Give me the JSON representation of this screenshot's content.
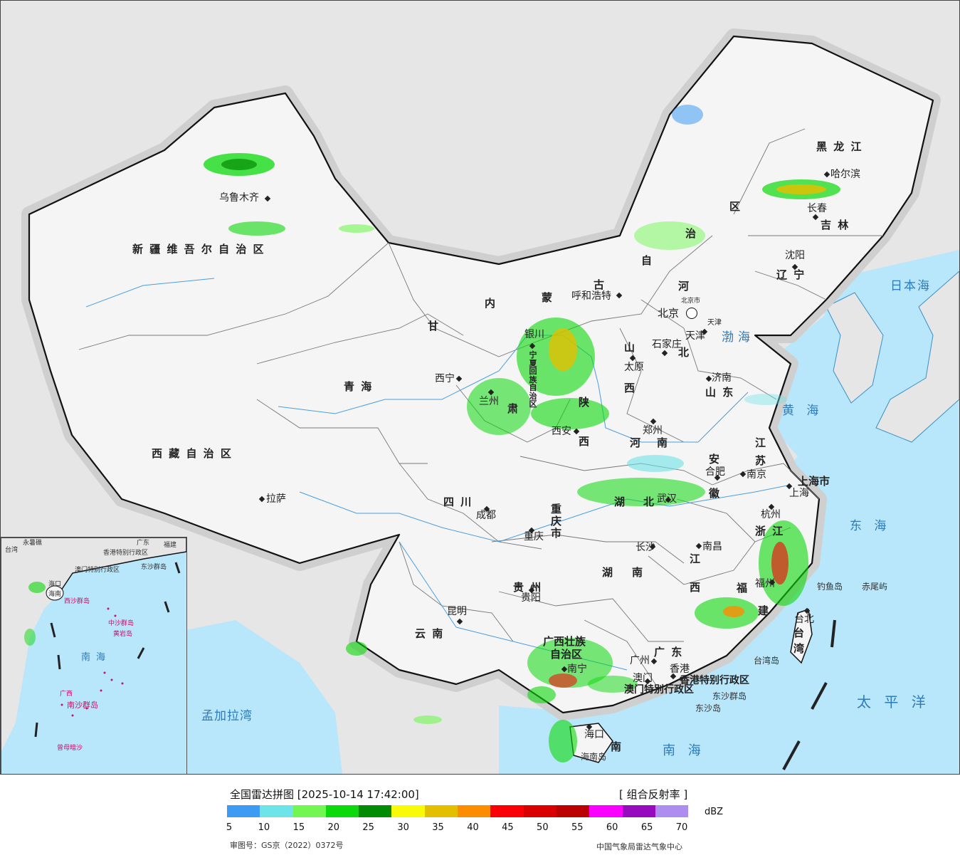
{
  "map": {
    "land_outside": "#e6e6e6",
    "sea_color": "#b8e6fa",
    "china_land": "#f5f5f5",
    "provinces": {
      "xinjiang": "新 疆 维 吾 尔 自 治 区",
      "xizang": "西 藏 自 治 区",
      "qinghai": "青      海",
      "gansu": "甘",
      "sichuan": "四      川",
      "yunnan": "云      南",
      "guizhou": "贵   州",
      "neimenggu": [
        "内",
        "蒙",
        "古",
        "自",
        "治",
        "区"
      ],
      "ningxia": [
        "宁",
        "夏",
        "回",
        "族",
        "自",
        "治",
        "区"
      ],
      "shaanxi": [
        "陕",
        "西"
      ],
      "shanxi": [
        "山",
        "西"
      ],
      "hebei": [
        "河",
        "北"
      ],
      "henan": [
        "河",
        "南"
      ],
      "shandong": "山 东",
      "jiangsu": [
        "江",
        "苏"
      ],
      "anhui": [
        "安",
        "徽"
      ],
      "hubei": [
        "湖",
        "北"
      ],
      "hunan": [
        "湖",
        "南"
      ],
      "jiangxi": [
        "江",
        "西"
      ],
      "zhejiang": "浙 江",
      "fujian": [
        "福",
        "建"
      ],
      "guangdong": "广 东",
      "guangxi": "广西壮族",
      "guangxi2": "自治区",
      "hainan": "南",
      "chongqing": [
        "重",
        "庆",
        "市"
      ],
      "shanghai": "上海市",
      "heilongjiang": "黑   龙   江",
      "jilin": "吉   林",
      "liaoning": "辽 宁",
      "taiwan": [
        "台",
        "湾"
      ],
      "hongkong": "香港特别行政区",
      "macau": "澳门特别行政区"
    },
    "cities": {
      "urumqi": "乌鲁木齐",
      "lhasa": "拉萨",
      "xining": "西宁",
      "lanzhou": "兰州",
      "yinchuan": "银川",
      "hohhot": "呼和浩特",
      "beijing": "北京",
      "beijing_small": "北京市",
      "tianjin": "天津",
      "tianjin_small": "天津",
      "shijiazhuang": "石家庄",
      "taiyuan": "太原",
      "jinan": "济南",
      "xian": "西安",
      "zhengzhou": "郑州",
      "hefei": "合肥",
      "nanjing": "南京",
      "shanghai": "上海",
      "hangzhou": "杭州",
      "wuhan": "武汉",
      "chengdu": "成都",
      "chongqing": "重庆",
      "changsha": "长沙",
      "nanchang": "南昌",
      "fuzhou": "福州",
      "taipei": "台北",
      "guiyang": "贵阳",
      "kunming": "昆明",
      "nanning": "南宁",
      "guangzhou": "广州",
      "hongkong": "香港",
      "macau": "澳门",
      "haikou": "海口",
      "harbin": "哈尔滨",
      "changchun": "长春",
      "shenyang": "沈阳"
    },
    "seas": {
      "japan_sea": "日本海",
      "bohai": "渤海",
      "yellow_sea": "黄 海",
      "east_sea": "东 海",
      "pacific": "太 平 洋",
      "south_sea": "南 海",
      "bengal": "孟加拉湾"
    },
    "islands": {
      "diaoyu": "钓鱼岛",
      "chiwei": "赤尾屿",
      "taiwan_island": "台湾岛",
      "dongsha_islands": "东沙群岛",
      "dongsha_island": "东沙岛",
      "hainan_island": "海南岛"
    }
  },
  "inset": {
    "labels": [
      "香港特别行政区",
      "澳门特别行政区",
      "东沙群岛",
      "海南",
      "西沙群岛",
      "中沙群岛",
      "黄岩岛",
      "南海",
      "南沙群岛",
      "曾母暗沙",
      "永暑礁",
      "广东",
      "福建",
      "台湾",
      "广西",
      "海口"
    ]
  },
  "legend": {
    "title": "全国雷达拼图 [2025-10-14 17:42:00]",
    "product": "[ 组合反射率 ]",
    "unit": "dBZ",
    "ticks": [
      "5",
      "10",
      "15",
      "20",
      "25",
      "30",
      "35",
      "40",
      "45",
      "50",
      "55",
      "60",
      "65",
      "70"
    ],
    "colors": [
      "#3d9bf2",
      "#6ee3e8",
      "#72f752",
      "#0bd90b",
      "#038c03",
      "#f8fa08",
      "#e3bf00",
      "#fc8c00",
      "#fa0006",
      "#d80000",
      "#bb0000",
      "#fa00ff",
      "#950bbd",
      "#ad8ef0"
    ],
    "approval": "审图号：GS京（2022）0372号",
    "source": "中国气象局雷达气象中心"
  }
}
